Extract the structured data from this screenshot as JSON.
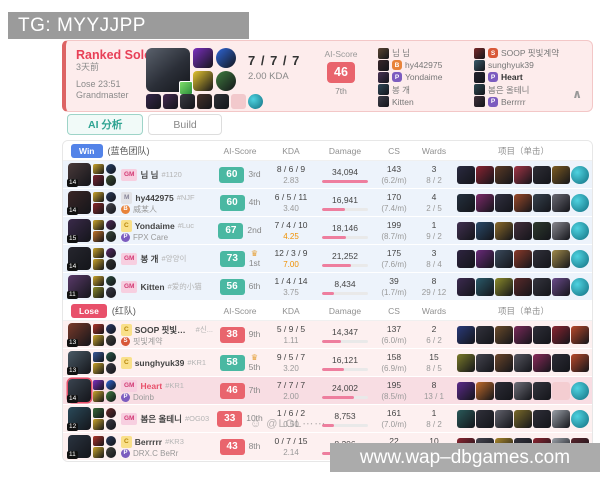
{
  "watermark_top": "TG: MYYJJPP",
  "watermark_bottom": "www.wap–dbgames.com",
  "watermark_overlay": "☺ @LOL⋯⋯",
  "header": {
    "queue": "Ranked Solo",
    "date": "3天前",
    "result": "Lose 23:51",
    "tier": "Grandmaster",
    "kda": "7 / 7 / 7",
    "kda_ratio": "2.00 KDA",
    "ai_score_label": "AI-Score",
    "ai_score": "46",
    "ai_rank": "7th",
    "spells": [
      "#7b2fbe",
      "#2e66d8",
      "#e3c32f",
      "#3f7d3f"
    ],
    "items": [
      "#35264a",
      "#472a52",
      "#3a3a42",
      "#46322a",
      "#2f3138",
      "empty",
      "trinket"
    ],
    "team1": [
      {
        "name": "님 님",
        "avatar": "#5a4632"
      },
      {
        "name": "hy442975",
        "badge": "B",
        "badge_color": "#e8833a",
        "avatar": "#38262a"
      },
      {
        "name": "Yondaime",
        "badge": "P",
        "badge_color": "#7c5cbf",
        "avatar": "#4a3355"
      },
      {
        "name": "봉 개",
        "avatar": "#2f4858"
      },
      {
        "name": "Kitten",
        "avatar": "#3d3d49"
      }
    ],
    "team2": [
      {
        "name": "SOOP 핏빛계약",
        "badge": "S",
        "badge_color": "#d85838",
        "avatar": "#7a2a2a"
      },
      {
        "name": "sunghyuk39",
        "avatar": "#3a5a6a"
      },
      {
        "name": "Heart",
        "badge": "P",
        "badge_color": "#7c5cbf",
        "bold": true,
        "avatar": "#23242e"
      },
      {
        "name": "봄은 올테니",
        "avatar": "#2e4a52"
      },
      {
        "name": "Berrrrr",
        "badge": "P",
        "badge_color": "#7c5cbf",
        "avatar": "#41313a"
      }
    ],
    "collapse_glyph": "∧"
  },
  "tabs": [
    {
      "label": "AI 分析",
      "active": true
    },
    {
      "label": "Build",
      "active": false
    }
  ],
  "table": {
    "columns": {
      "score": "AI-Score",
      "kda": "KDA",
      "damage": "Damage",
      "cs": "CS",
      "wards": "Wards",
      "items": "项目（单击）"
    },
    "sections": [
      {
        "badge": "Win",
        "team": "(蓝色团队)",
        "type": "win"
      },
      {
        "badge": "Lose",
        "team": "(红队)",
        "type": "lose"
      }
    ],
    "rows": [
      {
        "team": "win",
        "level": "14",
        "portrait": "#4a3a3a",
        "spells": [
          "#caa42c",
          "#7a2430"
        ],
        "runes": [
          "#24406a",
          "#3c5030"
        ],
        "tier": "GM",
        "name": "님 님",
        "tag": "#1120",
        "score": "60",
        "tone": "good",
        "rank": "3rd",
        "crown": false,
        "kda": "8 / 6 / 9",
        "ratio": "2.83",
        "hot": false,
        "damage": "34,094",
        "dmg_pct": 100,
        "cs": "143",
        "cspm": "(6.2/m)",
        "wards": "3",
        "wards_sub": "8 / 2",
        "items": [
          "#2a2a40",
          "#8a2432",
          "#5c3a26",
          "#a33546",
          "#2e2e36",
          "#7c5c22",
          "trinket"
        ]
      },
      {
        "team": "win",
        "level": "14",
        "portrait": "#3a2626",
        "spells": [
          "#caa42c",
          "#8a2a2a"
        ],
        "runes": [
          "#2a3a5a",
          "#4a4a52"
        ],
        "tier": "M",
        "name": "hy442975",
        "tag": "#NJF",
        "sub_badge": "B",
        "sub_color": "#e8833a",
        "sub_name": "威某人",
        "score": "60",
        "tone": "good",
        "rank": "4th",
        "crown": false,
        "kda": "6 / 5 / 11",
        "ratio": "3.40",
        "hot": false,
        "damage": "16,941",
        "dmg_pct": 50,
        "cs": "170",
        "cspm": "(7.4/m)",
        "wards": "4",
        "wards_sub": "2 / 5",
        "items": [
          "#24303e",
          "#7c2a6a",
          "#303040",
          "#9a4a2a",
          "#36424e",
          "#6a6a74",
          "trinket"
        ]
      },
      {
        "team": "win",
        "level": "15",
        "portrait": "#3a2a4a",
        "spells": [
          "#caa42c",
          "#c2742a"
        ],
        "runes": [
          "#50285a",
          "#3a4a3a"
        ],
        "tier": "C",
        "name": "Yondaime",
        "tag": "#Luc",
        "sub_badge": "P",
        "sub_color": "#7c5cbf",
        "sub_name": "FPX Care",
        "score": "67",
        "tone": "good",
        "rank": "2nd",
        "crown": false,
        "kda": "7 / 4 / 10",
        "ratio": "4.25",
        "hot": true,
        "damage": "18,146",
        "dmg_pct": 53,
        "cs": "199",
        "cspm": "(8.7/m)",
        "wards": "1",
        "wards_sub": "9 / 2",
        "items": [
          "#403050",
          "#2a4a6a",
          "#8a6a2a",
          "#44303c",
          "#2e3a2e",
          "#88888f",
          "trinket"
        ]
      },
      {
        "team": "win",
        "level": "14",
        "portrait": "#26262e",
        "spells": [
          "#caa42c",
          "#caa42c"
        ],
        "runes": [
          "#5a2a6a",
          "#32322e"
        ],
        "tier": "GM",
        "name": "봉 개",
        "tag": "#양양이",
        "score": "73",
        "tone": "good",
        "rank": "1st",
        "crown": true,
        "kda": "12 / 3 / 9",
        "ratio": "7.00",
        "hot": true,
        "damage": "21,252",
        "dmg_pct": 62,
        "cs": "175",
        "cspm": "(7.6/m)",
        "wards": "3",
        "wards_sub": "8 / 4",
        "items": [
          "#2e2440",
          "#6a2a7a",
          "#3a4a5c",
          "#8a3a2a",
          "#30303a",
          "#a08a4a",
          "trinket"
        ]
      },
      {
        "team": "win",
        "level": "11",
        "portrait": "#5a3a6a",
        "spells": [
          "#caa42c",
          "#8a8a2a"
        ],
        "runes": [
          "#2a4a3a",
          "#3a3a46"
        ],
        "tier": "GM",
        "name": "Kitten",
        "tag": "#爱的小猫",
        "score": "56",
        "tone": "good",
        "rank": "6th",
        "crown": false,
        "kda": "1 / 4 / 14",
        "ratio": "3.75",
        "hot": false,
        "damage": "8,434",
        "dmg_pct": 25,
        "cs": "39",
        "cspm": "(1.7/m)",
        "wards": "8",
        "wards_sub": "29 / 12",
        "items": [
          "#3c2a50",
          "#2a5a6a",
          "#8a8a2a",
          "#5a2a2a",
          "#34343e",
          "#6a4a8a",
          "trinket"
        ]
      },
      {
        "team": "lose",
        "level": "13",
        "portrait": "#7a3a2a",
        "spells": [
          "#b0342a",
          "#caa42c"
        ],
        "runes": [
          "#2a3a6a",
          "#44443c"
        ],
        "tier": "C",
        "name": "SOOP 핏빛계약",
        "tag": "#신...",
        "sub_badge": "S",
        "sub_color": "#d85838",
        "sub_name": "핏빛계약",
        "score": "38",
        "tone": "bad",
        "rank": "9th",
        "crown": false,
        "kda": "5 / 9 / 5",
        "ratio": "1.11",
        "hot": false,
        "damage": "14,347",
        "dmg_pct": 42,
        "cs": "137",
        "cspm": "(6.0/m)",
        "wards": "2",
        "wards_sub": "6 / 2",
        "items": [
          "#2a3a7a",
          "#32323c",
          "#6a4a2a",
          "#7a2a5a",
          "#2e2e38",
          "#8a2430",
          "#b8482a"
        ]
      },
      {
        "team": "lose",
        "level": "13",
        "portrait": "#4a5a66",
        "spells": [
          "#3a5a9a",
          "#caa42c"
        ],
        "runes": [
          "#2a5a4a",
          "#3c3c46"
        ],
        "tier": "C",
        "name": "sunghyuk39",
        "tag": "#KR1",
        "score": "58",
        "tone": "good",
        "rank": "5th",
        "crown": true,
        "kda": "9 / 5 / 7",
        "ratio": "3.20",
        "hot": false,
        "damage": "16,121",
        "dmg_pct": 47,
        "cs": "158",
        "cspm": "(6.9/m)",
        "wards": "15",
        "wards_sub": "8 / 5",
        "items": [
          "#7a7a2a",
          "#44444e",
          "#6a452a",
          "#55555f",
          "#8a2a5a",
          "#2c2c36",
          "#b8482a"
        ]
      },
      {
        "team": "lose",
        "level": "14",
        "portrait": "#3a4450",
        "spells": [
          "#7b2fbe",
          "#caa42c"
        ],
        "runes": [
          "#2e66d8",
          "#3f7d3f"
        ],
        "tier": "GM",
        "name": "Heart",
        "tag": "#KR1",
        "name_red": true,
        "highlight": true,
        "sub_badge": "P",
        "sub_color": "#7c5cbf",
        "sub_name": "Doinb",
        "score": "46",
        "tone": "bad",
        "rank": "7th",
        "crown": false,
        "kda": "7 / 7 / 7",
        "ratio": "2.00",
        "hot": false,
        "damage": "24,002",
        "dmg_pct": 70,
        "cs": "195",
        "cspm": "(8.5/m)",
        "wards": "8",
        "wards_sub": "13 / 1",
        "items": [
          "#5c2a8a",
          "#c06a2a",
          "#2c2c36",
          "#6e6e78",
          "#34343e",
          "empty",
          "trinket"
        ]
      },
      {
        "team": "lose",
        "level": "12",
        "portrait": "#2a4a5a",
        "spells": [
          "#3a6a3a",
          "#caa42c"
        ],
        "runes": [
          "#6a2a2a",
          "#3a3a44"
        ],
        "tier": "GM",
        "name": "봄은 올테니",
        "tag": "#OG03",
        "score": "33",
        "tone": "bad",
        "rank": "10th",
        "crown": false,
        "kda": "1 / 6 / 2",
        "ratio": "0.50",
        "hot": false,
        "damage": "8,753",
        "dmg_pct": 26,
        "cs": "161",
        "cspm": "(7.0/m)",
        "wards": "1",
        "wards_sub": "8 / 2",
        "items": [
          "#2a5a5a",
          "#30303a",
          "#62626c",
          "#7a6a2a",
          "#2e2e38",
          "#9aa0a8",
          "trinket"
        ]
      },
      {
        "team": "lose",
        "level": "11",
        "portrait": "#2a3440",
        "spells": [
          "#b0342a",
          "#caa42c"
        ],
        "runes": [
          "#2a3a5a",
          "#46463e"
        ],
        "tier": "C",
        "name": "Berrrrr",
        "tag": "#KR3",
        "sub_badge": "P",
        "sub_color": "#7c5cbf",
        "sub_name": "DRX.C BeRr",
        "score": "43",
        "tone": "bad",
        "rank": "8th",
        "crown": false,
        "kda": "0 / 7 / 15",
        "ratio": "2.14",
        "hot": false,
        "damage": "8,206",
        "dmg_pct": 24,
        "cs": "22",
        "cspm": "(1.0/m)",
        "wards": "10",
        "wards_sub": "26 / 4",
        "items": [
          "#8a2430",
          "#44444e",
          "#a8862a",
          "#32323c",
          "#8a2430",
          "#9aa0a8",
          "#5a242c"
        ]
      }
    ]
  }
}
